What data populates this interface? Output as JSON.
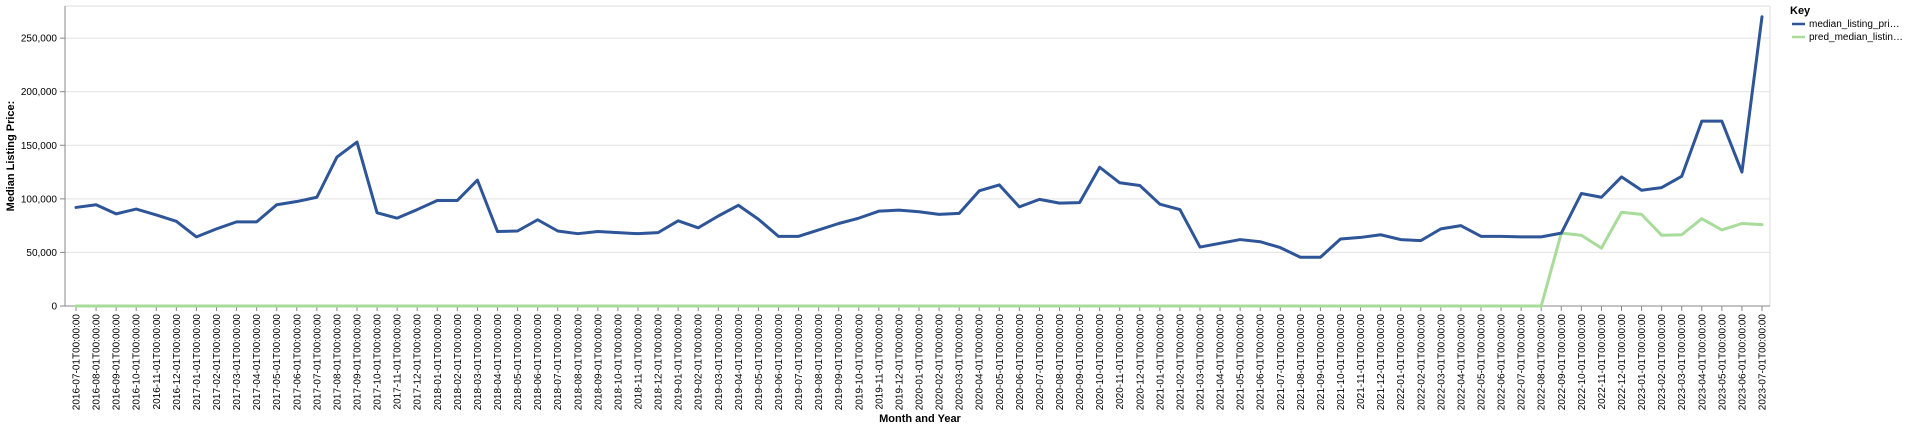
{
  "chart_data": {
    "type": "line",
    "xlabel": "Month and Year",
    "ylabel": "Median Listing Price:",
    "ylim": [
      0,
      280000
    ],
    "yticks": [
      0,
      50000,
      100000,
      150000,
      200000,
      250000
    ],
    "ytick_labels": [
      "0",
      "50,000",
      "100,000",
      "150,000",
      "200,000",
      "250,000"
    ],
    "grid": true,
    "legend": {
      "title": "Key",
      "placement": "top-right"
    },
    "x": [
      "2016-07-01T00:00:00",
      "2016-08-01T00:00:00",
      "2016-09-01T00:00:00",
      "2016-10-01T00:00:00",
      "2016-11-01T00:00:00",
      "2016-12-01T00:00:00",
      "2017-01-01T00:00:00",
      "2017-02-01T00:00:00",
      "2017-03-01T00:00:00",
      "2017-04-01T00:00:00",
      "2017-05-01T00:00:00",
      "2017-06-01T00:00:00",
      "2017-07-01T00:00:00",
      "2017-08-01T00:00:00",
      "2017-09-01T00:00:00",
      "2017-10-01T00:00:00",
      "2017-11-01T00:00:00",
      "2017-12-01T00:00:00",
      "2018-01-01T00:00:00",
      "2018-02-01T00:00:00",
      "2018-03-01T00:00:00",
      "2018-04-01T00:00:00",
      "2018-05-01T00:00:00",
      "2018-06-01T00:00:00",
      "2018-07-01T00:00:00",
      "2018-08-01T00:00:00",
      "2018-09-01T00:00:00",
      "2018-10-01T00:00:00",
      "2018-11-01T00:00:00",
      "2018-12-01T00:00:00",
      "2019-01-01T00:00:00",
      "2019-02-01T00:00:00",
      "2019-03-01T00:00:00",
      "2019-04-01T00:00:00",
      "2019-05-01T00:00:00",
      "2019-06-01T00:00:00",
      "2019-07-01T00:00:00",
      "2019-08-01T00:00:00",
      "2019-09-01T00:00:00",
      "2019-10-01T00:00:00",
      "2019-11-01T00:00:00",
      "2019-12-01T00:00:00",
      "2020-01-01T00:00:00",
      "2020-02-01T00:00:00",
      "2020-03-01T00:00:00",
      "2020-04-01T00:00:00",
      "2020-05-01T00:00:00",
      "2020-06-01T00:00:00",
      "2020-07-01T00:00:00",
      "2020-08-01T00:00:00",
      "2020-09-01T00:00:00",
      "2020-10-01T00:00:00",
      "2020-11-01T00:00:00",
      "2020-12-01T00:00:00",
      "2021-01-01T00:00:00",
      "2021-02-01T00:00:00",
      "2021-03-01T00:00:00",
      "2021-04-01T00:00:00",
      "2021-05-01T00:00:00",
      "2021-06-01T00:00:00",
      "2021-07-01T00:00:00",
      "2021-08-01T00:00:00",
      "2021-09-01T00:00:00",
      "2021-10-01T00:00:00",
      "2021-11-01T00:00:00",
      "2021-12-01T00:00:00",
      "2022-01-01T00:00:00",
      "2022-02-01T00:00:00",
      "2022-03-01T00:00:00",
      "2022-04-01T00:00:00",
      "2022-05-01T00:00:00",
      "2022-06-01T00:00:00",
      "2022-07-01T00:00:00",
      "2022-08-01T00:00:00",
      "2022-09-01T00:00:00",
      "2022-10-01T00:00:00",
      "2022-11-01T00:00:00",
      "2022-12-01T00:00:00",
      "2023-01-01T00:00:00",
      "2023-02-01T00:00:00",
      "2023-03-01T00:00:00",
      "2023-04-01T00:00:00",
      "2023-05-01T00:00:00",
      "2023-06-01T00:00:00",
      "2023-07-01T00:00:00"
    ],
    "series": [
      {
        "name": "median_listing_pri…",
        "color": "#2d5597",
        "values": [
          92000,
          94500,
          86000,
          90500,
          85000,
          79000,
          64500,
          72000,
          78500,
          78500,
          94500,
          97500,
          101500,
          139000,
          153000,
          87000,
          82000,
          90000,
          98500,
          98500,
          117500,
          69500,
          70000,
          80500,
          70000,
          67500,
          69500,
          68500,
          67500,
          68500,
          79500,
          73000,
          84000,
          94000,
          81000,
          65000,
          65000,
          71000,
          77000,
          82000,
          88500,
          89500,
          88000,
          85500,
          86500,
          107500,
          113000,
          92500,
          99500,
          96000,
          96500,
          129500,
          115000,
          112500,
          95000,
          90000,
          55000,
          58500,
          62000,
          60000,
          54500,
          45500,
          45500,
          62500,
          64000,
          66500,
          62000,
          61000,
          72000,
          75000,
          65000,
          65000,
          64500,
          64500,
          68000,
          105000,
          101500,
          120500,
          108000,
          110500,
          121000,
          172500,
          172500,
          125000,
          270000
        ]
      },
      {
        "name": "pred_median_listin…",
        "color": "#a8dc9a",
        "values": [
          0,
          0,
          0,
          0,
          0,
          0,
          0,
          0,
          0,
          0,
          0,
          0,
          0,
          0,
          0,
          0,
          0,
          0,
          0,
          0,
          0,
          0,
          0,
          0,
          0,
          0,
          0,
          0,
          0,
          0,
          0,
          0,
          0,
          0,
          0,
          0,
          0,
          0,
          0,
          0,
          0,
          0,
          0,
          0,
          0,
          0,
          0,
          0,
          0,
          0,
          0,
          0,
          0,
          0,
          0,
          0,
          0,
          0,
          0,
          0,
          0,
          0,
          0,
          0,
          0,
          0,
          0,
          0,
          0,
          0,
          0,
          0,
          0,
          0,
          68000,
          66000,
          54000,
          87500,
          85500,
          66000,
          66500,
          81500,
          71000,
          77000,
          76000
        ]
      }
    ]
  }
}
